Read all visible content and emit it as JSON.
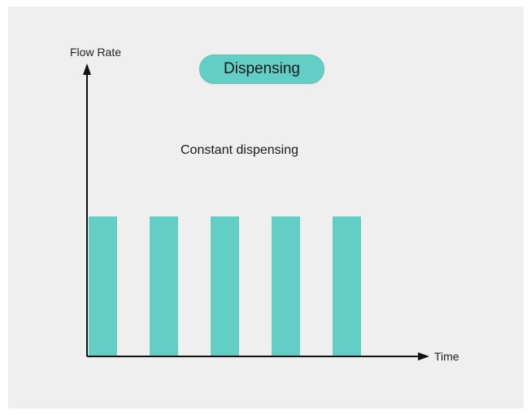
{
  "diagram": {
    "badge": "Dispensing",
    "caption": "Constant dispensing",
    "y_axis_label": "Flow Rate",
    "x_axis_label": "Time"
  },
  "chart_data": {
    "type": "bar",
    "categories": [
      "",
      "",
      "",
      "",
      ""
    ],
    "values": [
      1,
      1,
      1,
      1,
      1
    ],
    "xlabel": "Time",
    "ylabel": "Flow Rate",
    "ylim": [
      0,
      2
    ],
    "grid": false,
    "legend": "none",
    "bar_color": "#62cec6",
    "axis_color": "#111111"
  }
}
